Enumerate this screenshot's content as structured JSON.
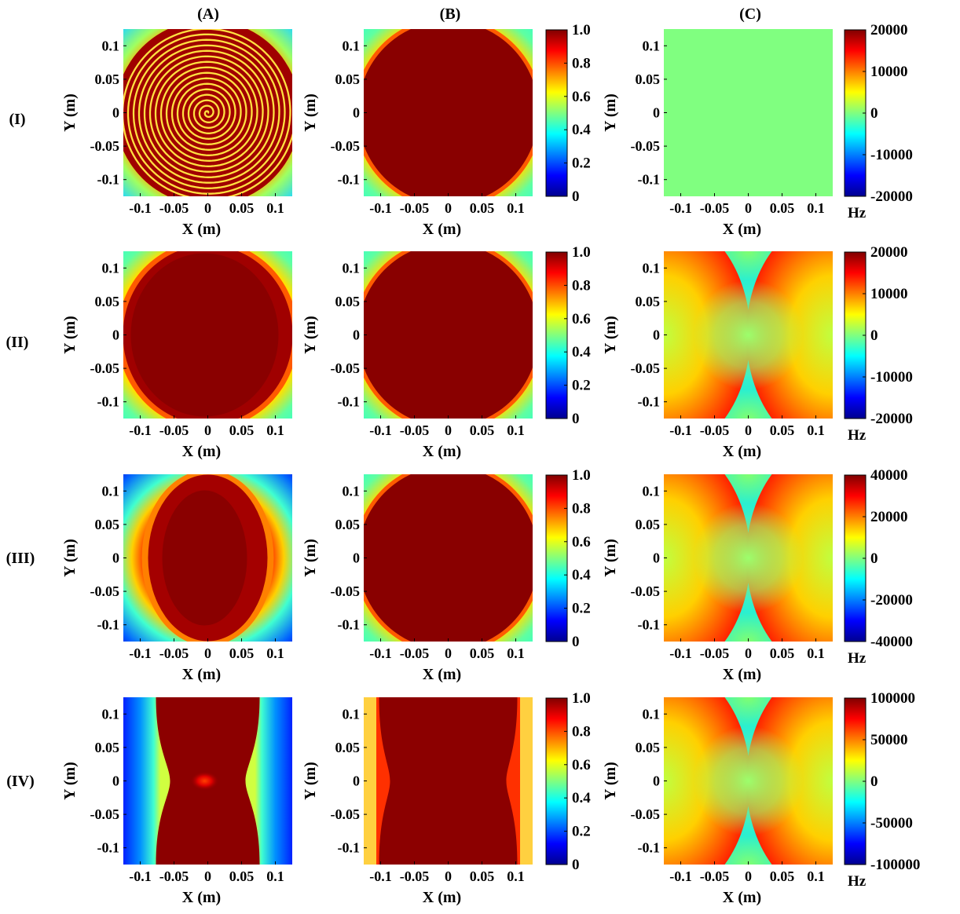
{
  "figure": {
    "column_labels": [
      "(A)",
      "(B)",
      "(C)"
    ],
    "row_labels": [
      "(I)",
      "(II)",
      "(III)",
      "(IV)"
    ]
  },
  "chart_data": {
    "type": "heatmap",
    "panel_axes": {
      "xlabel": "X (m)",
      "ylabel": "Y (m)",
      "xlim": [
        -0.125,
        0.125
      ],
      "ylim": [
        -0.125,
        0.125
      ],
      "x_ticks": [
        "-0.1",
        "-0.05",
        "0",
        "0.05",
        "0.1"
      ],
      "y_ticks": [
        "0.1",
        "0.05",
        "0",
        "-0.05",
        "-0.1"
      ]
    },
    "colormap": "jet",
    "colorbars": [
      {
        "row": "I",
        "col": "B",
        "ticks": [
          "1.0",
          "0.8",
          "0.6",
          "0.4",
          "0.2",
          "0"
        ],
        "range": [
          0,
          1
        ],
        "unit": ""
      },
      {
        "row": "I",
        "col": "C",
        "ticks": [
          "20000",
          "10000",
          "0",
          "-10000",
          "-20000"
        ],
        "range": [
          -20000,
          20000
        ],
        "unit": "Hz"
      },
      {
        "row": "II",
        "col": "B",
        "ticks": [
          "1.0",
          "0.8",
          "0.6",
          "0.4",
          "0.2",
          "0"
        ],
        "range": [
          0,
          1
        ],
        "unit": ""
      },
      {
        "row": "II",
        "col": "C",
        "ticks": [
          "20000",
          "10000",
          "0",
          "-10000",
          "-20000"
        ],
        "range": [
          -20000,
          20000
        ],
        "unit": "Hz"
      },
      {
        "row": "III",
        "col": "B",
        "ticks": [
          "1.0",
          "0.8",
          "0.6",
          "0.4",
          "0.2",
          "0"
        ],
        "range": [
          0,
          1
        ],
        "unit": ""
      },
      {
        "row": "III",
        "col": "C",
        "ticks": [
          "40000",
          "20000",
          "0",
          "-20000",
          "-40000"
        ],
        "range": [
          -40000,
          40000
        ],
        "unit": "Hz"
      },
      {
        "row": "IV",
        "col": "B",
        "ticks": [
          "1.0",
          "0.8",
          "0.6",
          "0.4",
          "0.2",
          "0"
        ],
        "range": [
          0,
          1
        ],
        "unit": ""
      },
      {
        "row": "IV",
        "col": "C",
        "ticks": [
          "100000",
          "50000",
          "0",
          "-50000",
          "-100000"
        ],
        "range": [
          -100000,
          100000
        ],
        "unit": "Hz"
      }
    ],
    "panels": [
      {
        "row": "I",
        "col": "A",
        "pattern": "spiral-in-disk",
        "background": "circular-fade"
      },
      {
        "row": "I",
        "col": "B",
        "pattern": "disk-plateau",
        "plateau_value": 1.0
      },
      {
        "row": "I",
        "col": "C",
        "pattern": "uniform",
        "value_hz": 0
      },
      {
        "row": "II",
        "col": "A",
        "pattern": "ellipse-plateau-ring"
      },
      {
        "row": "II",
        "col": "B",
        "pattern": "disk-plateau",
        "plateau_value": 1.0
      },
      {
        "row": "II",
        "col": "C",
        "pattern": "quadrupole-saddle",
        "max_hz": 20000
      },
      {
        "row": "III",
        "col": "A",
        "pattern": "elongated-ellipse-ring"
      },
      {
        "row": "III",
        "col": "B",
        "pattern": "disk-plateau",
        "plateau_value": 1.0
      },
      {
        "row": "III",
        "col": "C",
        "pattern": "quadrupole-saddle",
        "max_hz": 40000
      },
      {
        "row": "IV",
        "col": "A",
        "pattern": "hourglass-band"
      },
      {
        "row": "IV",
        "col": "B",
        "pattern": "hourglass-band-wide"
      },
      {
        "row": "IV",
        "col": "C",
        "pattern": "quadrupole-saddle",
        "max_hz": 100000
      }
    ]
  }
}
